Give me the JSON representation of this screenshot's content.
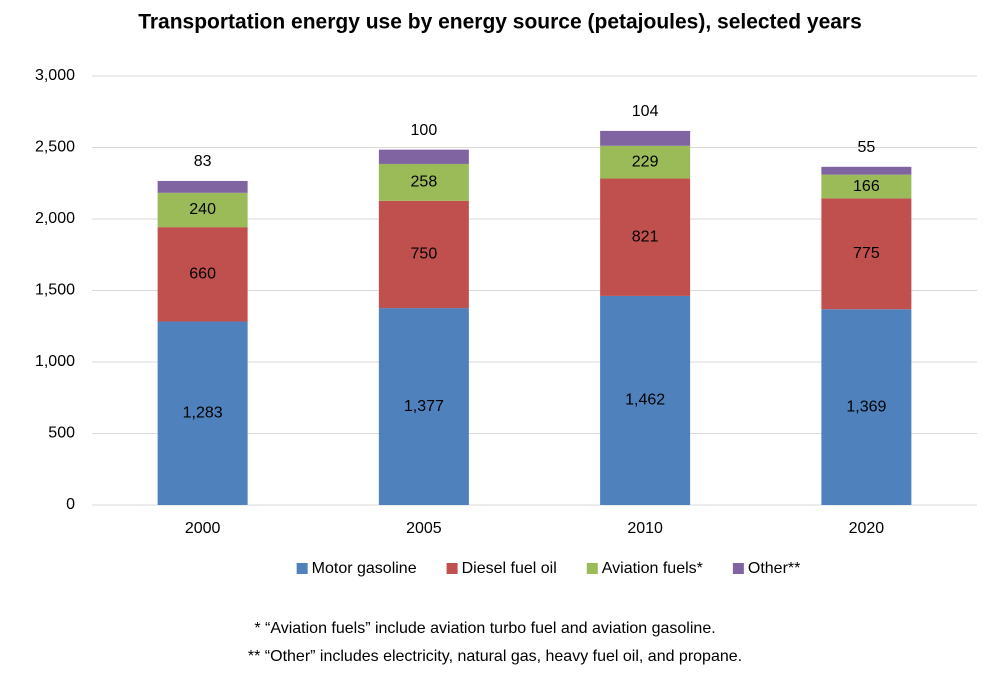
{
  "chart_data": {
    "type": "stacked-bar",
    "title": "Transportation energy use by energy source (petajoules), selected years",
    "categories": [
      "2000",
      "2005",
      "2010",
      "2020"
    ],
    "series": [
      {
        "name": "Motor gasoline",
        "color": "#4f81bd",
        "values": [
          1283,
          1377,
          1462,
          1369
        ],
        "value_labels": [
          "1,283",
          "1,377",
          "1,462",
          "1,369"
        ]
      },
      {
        "name": "Diesel fuel oil",
        "color": "#c0504d",
        "values": [
          660,
          750,
          821,
          775
        ]
      },
      {
        "name": "Aviation fuels*",
        "color": "#9bbb59",
        "values": [
          240,
          258,
          229,
          166
        ]
      },
      {
        "name": "Other**",
        "color": "#8064a2",
        "values": [
          83,
          100,
          104,
          55
        ]
      }
    ],
    "ylim": [
      0,
      3000
    ],
    "yticks": [
      0,
      500,
      {
        "value": 1000,
        "label": "1,000"
      },
      {
        "value": 1500,
        "label": "1,500"
      },
      {
        "value": 2000,
        "label": "2,000"
      },
      {
        "value": 2500,
        "label": "2,500"
      },
      {
        "value": 3000,
        "label": "3,000"
      }
    ],
    "grid": true,
    "legend": "bottom",
    "notes": [
      "* “Aviation fuels” include aviation turbo fuel and aviation gasoline.",
      "** “Other” includes electricity, natural gas, heavy fuel oil, and propane."
    ]
  }
}
